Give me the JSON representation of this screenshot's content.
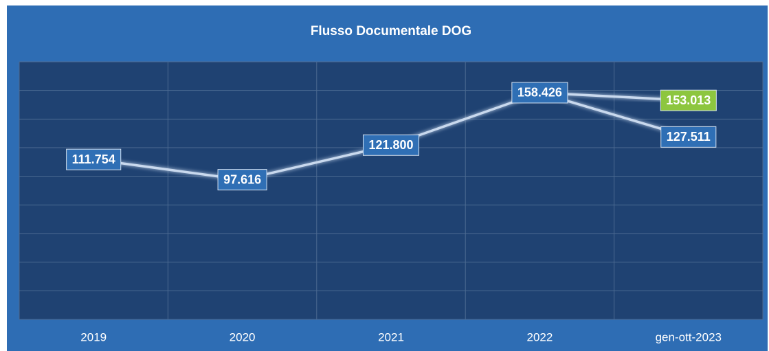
{
  "chart_data": {
    "type": "line",
    "title": "Flusso Documentale DOG",
    "categories": [
      "2019",
      "2020",
      "2021",
      "2022",
      "gen-ott-2023"
    ],
    "series": [
      {
        "color": "#c9d9ee",
        "label_fill": "#2f6fb5",
        "values": [
          111754,
          97616,
          121800,
          158426,
          127511
        ],
        "value_labels": [
          "111.754",
          "97.616",
          "121.800",
          "158.426",
          "127.511"
        ]
      },
      {
        "color": "#c9d9ee",
        "label_fill": "#8dc63f",
        "values": [
          null,
          null,
          null,
          158426,
          153013
        ],
        "value_labels": [
          null,
          null,
          null,
          null,
          "153.013"
        ]
      }
    ],
    "ylim": [
      0,
      180000
    ],
    "yticks": [
      0,
      20000,
      40000,
      60000,
      80000,
      100000,
      120000,
      140000,
      160000,
      180000
    ],
    "grid": true
  }
}
